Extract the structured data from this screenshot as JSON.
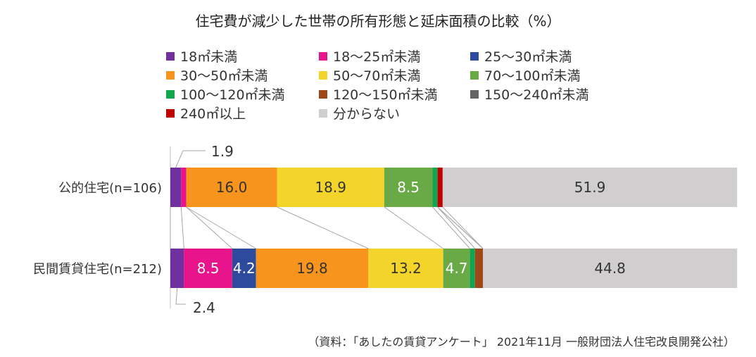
{
  "chart_data": {
    "type": "bar",
    "orientation": "horizontal-stacked",
    "title": "住宅費が減少した世帯の所有形態と延床面積の比較（%）",
    "categories": [
      "公的住宅(n=106)",
      "民間賃貸住宅(n=212)"
    ],
    "series": [
      {
        "name": "18㎡未満",
        "color": "#7030a0",
        "values": [
          1.9,
          2.4
        ],
        "labels": [
          "",
          ""
        ]
      },
      {
        "name": "18〜25㎡未満",
        "color": "#e8148c",
        "values": [
          0.9,
          8.5
        ],
        "labels": [
          "",
          "8.5"
        ]
      },
      {
        "name": "25〜30㎡未満",
        "color": "#2e4a9c",
        "values": [
          0.0,
          4.2
        ],
        "labels": [
          "",
          "4.2"
        ]
      },
      {
        "name": "30〜50㎡未満",
        "color": "#f7941d",
        "values": [
          16.0,
          19.8
        ],
        "labels": [
          "16.0",
          "19.8"
        ]
      },
      {
        "name": "50〜70㎡未満",
        "color": "#f2d42b",
        "values": [
          18.9,
          13.2
        ],
        "labels": [
          "18.9",
          "13.2"
        ]
      },
      {
        "name": "70〜100㎡未満",
        "color": "#6aaa46",
        "values": [
          8.5,
          4.7
        ],
        "labels": [
          "8.5",
          "4.7"
        ]
      },
      {
        "name": "100〜120㎡未満",
        "color": "#12a550",
        "values": [
          0.9,
          0.9
        ],
        "labels": [
          "",
          ""
        ]
      },
      {
        "name": "120〜150㎡未満",
        "color": "#a0471a",
        "values": [
          0.0,
          1.4
        ],
        "labels": [
          "",
          ""
        ]
      },
      {
        "name": "150〜240㎡未満",
        "color": "#636363",
        "values": [
          0.0,
          0.0
        ],
        "labels": [
          "",
          ""
        ]
      },
      {
        "name": "240㎡以上",
        "color": "#c00000",
        "values": [
          0.9,
          0.0
        ],
        "labels": [
          "",
          ""
        ]
      },
      {
        "name": "分からない",
        "color": "#d0cece",
        "values": [
          51.9,
          44.8
        ],
        "labels": [
          "51.9",
          "44.8"
        ]
      }
    ],
    "callouts": [
      {
        "category": "公的住宅(n=106)",
        "series": "18㎡未満",
        "text": "1.9"
      },
      {
        "category": "民間賃貸住宅(n=212)",
        "series": "18㎡未満",
        "text": "2.4"
      }
    ],
    "xlim": [
      0,
      100
    ],
    "legend": "top",
    "source": "（資料：「あしたの賃貸アンケート」 2021年11月 一般財団法人住宅改良開発公社）"
  }
}
